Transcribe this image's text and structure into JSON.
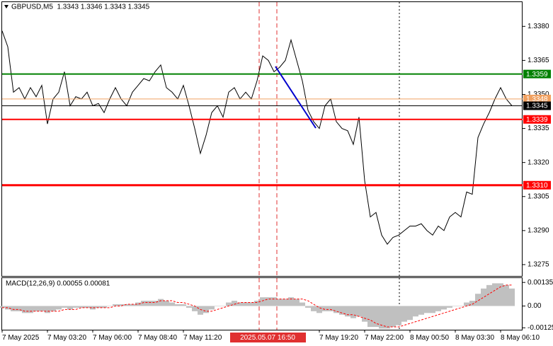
{
  "chart_data": [
    {
      "type": "line",
      "title": "GBPUSD,M5  1.3343 1.3346 1.3343 1.3345",
      "categories": [
        "7 May 2025",
        null,
        null,
        null,
        null,
        null,
        null,
        null,
        "7 May 03:20",
        null,
        null,
        null,
        null,
        null,
        null,
        null,
        "7 May 06:00",
        null,
        null,
        null,
        null,
        null,
        null,
        null,
        "7 May 08:40",
        null,
        null,
        null,
        null,
        null,
        null,
        null,
        "7 May 11:20",
        null,
        null,
        null,
        null,
        null,
        null,
        null,
        null,
        null,
        null,
        null,
        null,
        null,
        null,
        null,
        null,
        null,
        null,
        null,
        null,
        null,
        null,
        null,
        "7 May 19:20",
        null,
        null,
        null,
        null,
        null,
        null,
        null,
        "7 May 22:00",
        null,
        null,
        null,
        null,
        null,
        null,
        null,
        "8 May 00:50",
        null,
        null,
        null,
        null,
        null,
        null,
        null,
        "8 May 03:30",
        null,
        null,
        null,
        null,
        null,
        null,
        null,
        "8 May 06:10",
        null,
        null
      ],
      "values": [
        1.3378,
        1.3371,
        1.3351,
        1.3353,
        1.3348,
        1.3353,
        1.3349,
        1.3354,
        1.3337,
        1.3348,
        1.3351,
        1.336,
        1.3345,
        1.3349,
        1.3348,
        1.3351,
        1.3345,
        1.3346,
        1.3342,
        1.3348,
        1.3353,
        1.3348,
        1.3345,
        1.3351,
        1.3354,
        1.3357,
        1.3356,
        1.336,
        1.3363,
        1.3353,
        1.3351,
        1.3348,
        1.3354,
        1.3345,
        1.3335,
        1.3324,
        1.3332,
        1.3342,
        1.3345,
        1.334,
        1.3351,
        1.3353,
        1.3348,
        1.3351,
        1.3348,
        1.3356,
        1.3367,
        1.3365,
        1.336,
        1.3362,
        1.3365,
        1.3374,
        1.3365,
        1.3356,
        1.3343,
        1.3338,
        1.3335,
        1.3345,
        1.3348,
        1.3338,
        1.3335,
        1.3334,
        1.3328,
        1.334,
        1.3312,
        1.3296,
        1.3298,
        1.3288,
        1.3284,
        1.3287,
        1.3288,
        1.329,
        1.3292,
        1.3292,
        1.3293,
        1.329,
        1.3288,
        1.3292,
        1.329,
        1.3296,
        1.3298,
        1.3296,
        1.3307,
        1.3306,
        1.3331,
        1.3337,
        1.3342,
        1.3348,
        1.3353,
        1.3348,
        1.3345
      ],
      "color": "#000000",
      "ylim": [
        1.327,
        1.3391
      ],
      "yticks": [
        {
          "value": 1.338,
          "label": "1.3380"
        },
        1.3365,
        {
          "value": 1.335,
          "label": "1.3350"
        },
        1.3335,
        {
          "value": 1.332,
          "label": "1.3320"
        },
        1.3305,
        {
          "value": 1.329,
          "label": "1.3290"
        },
        1.3275
      ],
      "levels": [
        {
          "value": 1.3359,
          "color": "#008000",
          "width": 2
        },
        {
          "value": 1.3348,
          "color": "#f0a060",
          "width": 1
        },
        {
          "value": 1.3345,
          "color": "#000000",
          "width": 1
        },
        {
          "value": 1.3339,
          "color": "#ff0000",
          "width": 2
        },
        {
          "value": 1.331,
          "label": "1.3310",
          "color": "#ff0000",
          "width": 3
        }
      ],
      "crosshair_label": "2025.05.07 16:50"
    },
    {
      "type": "macd",
      "title": "MACD(12,26,9) 0.00055 0.00081",
      "series": [
        {
          "kind": "bar",
          "color": "#c0c0c0",
          "values": [
            -0.0001,
            -0.0002,
            -0.0003,
            -0.0003,
            -0.0004,
            -0.0004,
            -0.0003,
            -0.0003,
            -0.0004,
            -0.0003,
            -0.0002,
            -0.0001,
            -0.0002,
            -0.0001,
            -0.0001,
            -0.0001,
            -0.0002,
            -0.0001,
            -0.0001,
            0,
            0.0001,
            0.0001,
            0.0001,
            0.0001,
            0.0002,
            0.0003,
            0.0003,
            0.0003,
            0.0004,
            0.0003,
            0.0002,
            0.0001,
            0.0001,
            -0.0001,
            -0.0003,
            -0.0005,
            -0.0004,
            -0.0002,
            0,
            0,
            0.0002,
            0.0003,
            0.0002,
            0.0002,
            0.0002,
            0.0003,
            0.0005,
            0.0005,
            0.0005,
            0.0004,
            0.0004,
            0.0005,
            0.0004,
            0.0002,
            -0.0001,
            -0.0003,
            -0.0004,
            -0.0003,
            -0.0003,
            -0.0004,
            -0.0005,
            -0.0006,
            -0.0007,
            -0.0006,
            -0.0009,
            -0.0012,
            -0.0012,
            -0.0013,
            -0.0013,
            -0.0012,
            -0.0011,
            -0.0009,
            -0.0008,
            -0.0006,
            -0.0005,
            -0.0004,
            -0.0004,
            -0.0003,
            -0.0002,
            -0.0001,
            0,
            0,
            0.0002,
            0.0003,
            0.0007,
            0.001,
            0.0012,
            0.0013,
            0.0013,
            0.0012,
            0.001
          ]
        },
        {
          "kind": "line",
          "color": "#ff0000",
          "values": [
            -0.0001,
            -0.0001,
            -0.0002,
            -0.0002,
            -0.0003,
            -0.0003,
            -0.0003,
            -0.0003,
            -0.0003,
            -0.0003,
            -0.0003,
            -0.0002,
            -0.0002,
            -0.0002,
            -0.0001,
            -0.0001,
            -0.0001,
            -0.0001,
            -0.0001,
            -0.0001,
            0,
            0,
            0.0001,
            0.0001,
            0.0001,
            0.0002,
            0.0002,
            0.0002,
            0.0003,
            0.0003,
            0.0003,
            0.0002,
            0.0002,
            0.0001,
            0,
            -0.0002,
            -0.0003,
            -0.0003,
            -0.0002,
            -0.0001,
            0,
            0.0001,
            0.0002,
            0.0002,
            0.0002,
            0.0002,
            0.0003,
            0.0004,
            0.0004,
            0.0004,
            0.0004,
            0.0004,
            0.0004,
            0.0004,
            0.0003,
            0.0001,
            -0.0001,
            -0.0002,
            -0.0002,
            -0.0003,
            -0.0004,
            -0.0005,
            -0.0005,
            -0.0006,
            -0.0007,
            -0.0008,
            -0.001,
            -0.0011,
            -0.0012,
            -0.0012,
            -0.0012,
            -0.0011,
            -0.001,
            -0.0009,
            -0.0008,
            -0.0007,
            -0.0006,
            -0.0005,
            -0.0004,
            -0.0003,
            -0.0002,
            -0.0001,
            0,
            0.0001,
            0.0003,
            0.0005,
            0.0007,
            0.0009,
            0.0011,
            0.0012,
            0.0012
          ]
        }
      ],
      "ylim": [
        -0.00136,
        0.0016
      ],
      "yticks": [
        0.00135,
        {
          "value": 0,
          "label": "0.00"
        },
        -0.00125
      ]
    }
  ]
}
